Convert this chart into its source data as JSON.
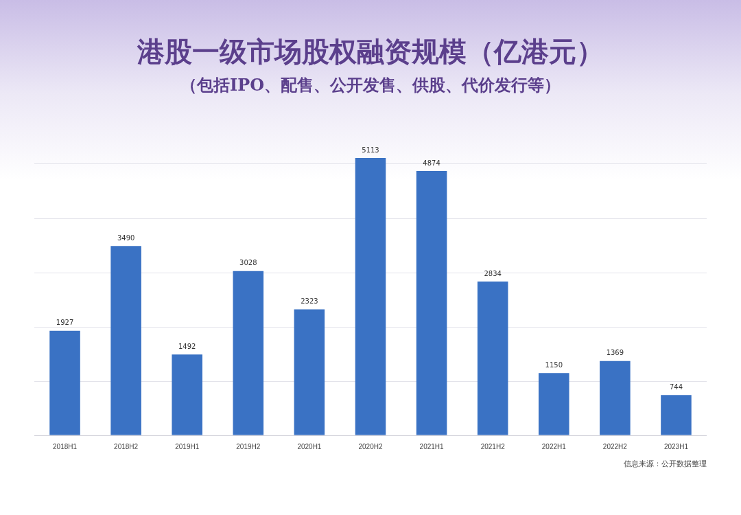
{
  "chart_data": {
    "type": "bar",
    "title": "港股一级市场股权融资规模（亿港元）",
    "subtitle": "（包括IPO、配售、公开发售、供股、代价发行等）",
    "categories": [
      "2018H1",
      "2018H2",
      "2019H1",
      "2019H2",
      "2020H1",
      "2020H2",
      "2021H1",
      "2021H2",
      "2022H1",
      "2022H2",
      "2023H1"
    ],
    "values": [
      1927,
      3490,
      1492,
      3028,
      2323,
      5113,
      4874,
      2834,
      1150,
      1369,
      744
    ],
    "color": "#3a72c4",
    "yticks": [
      {
        "value": 0,
        "label": null
      },
      {
        "value": 1000,
        "label": null
      },
      {
        "value": 2000,
        "label": null
      },
      {
        "value": 3000,
        "label": null
      },
      {
        "value": 4000,
        "label": null
      },
      {
        "value": 5000,
        "label": null
      }
    ],
    "tick_labels": "x",
    "grid": "y",
    "data_labels": true,
    "annotations": [
      "信息来源：公开数据整理"
    ]
  }
}
